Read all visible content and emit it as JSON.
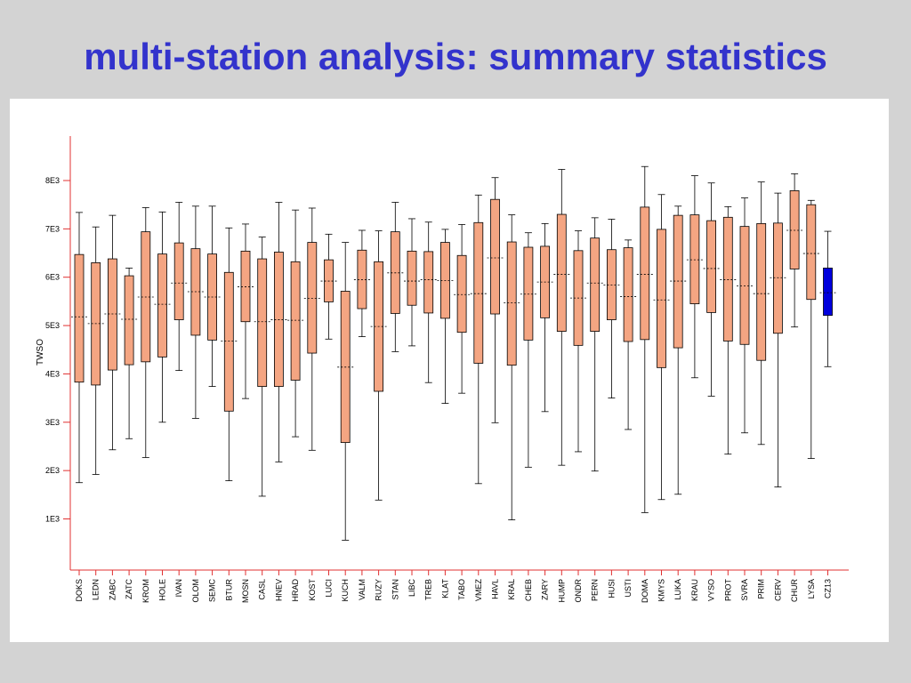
{
  "slide": {
    "title": "multi-station analysis: summary statistics"
  },
  "colors": {
    "title": "#3333cc",
    "axis": "#e03030",
    "box_fill": "#f4a582",
    "highlight_fill": "#0000dd",
    "background": "#d3d3d3"
  },
  "chart_data": {
    "type": "boxplot",
    "title": "",
    "ylabel": "TWSO",
    "xlabel": "",
    "ylim": [
      0,
      8800
    ],
    "ytick_values": [
      1000,
      2000,
      3000,
      4000,
      5000,
      6000,
      7000,
      8000
    ],
    "ytick_labels": [
      "1E3",
      "2E3",
      "3E3",
      "4E3",
      "5E3",
      "6E3",
      "7E3",
      "8E3"
    ],
    "grid": false,
    "highlighted_category": "CZ13",
    "categories": [
      "DOKS",
      "LEDN",
      "ZABC",
      "ZATC",
      "KROM",
      "HOLE",
      "IVAN",
      "OLOM",
      "SEMC",
      "BTUR",
      "MOSN",
      "CASL",
      "HNEV",
      "HRAD",
      "KOST",
      "LUCI",
      "KUCH",
      "VALM",
      "RUZY",
      "STAN",
      "LIBC",
      "TREB",
      "KLAT",
      "TABO",
      "VMEZ",
      "HAVL",
      "KRAL",
      "CHEB",
      "ZARY",
      "HUMP",
      "ONDR",
      "PERN",
      "HUSI",
      "USTI",
      "DOMA",
      "KMYS",
      "LUKA",
      "KRAU",
      "VYSO",
      "PROT",
      "SVRA",
      "PRIM",
      "CERV",
      "CHUR",
      "LYSA",
      "CZ13"
    ],
    "boxes": [
      {
        "min": 1750,
        "q1": 3830,
        "median": 5180,
        "q3": 6470,
        "max": 7340
      },
      {
        "min": 1920,
        "q1": 3770,
        "median": 5040,
        "q3": 6300,
        "max": 7040
      },
      {
        "min": 2430,
        "q1": 4080,
        "median": 5240,
        "q3": 6380,
        "max": 7280
      },
      {
        "min": 2660,
        "q1": 4190,
        "median": 5130,
        "q3": 6030,
        "max": 6190
      },
      {
        "min": 2270,
        "q1": 4250,
        "median": 5590,
        "q3": 6940,
        "max": 7440
      },
      {
        "min": 3000,
        "q1": 4350,
        "median": 5440,
        "q3": 6480,
        "max": 7350
      },
      {
        "min": 4070,
        "q1": 5120,
        "median": 5880,
        "q3": 6710,
        "max": 7550
      },
      {
        "min": 3080,
        "q1": 4800,
        "median": 5700,
        "q3": 6590,
        "max": 7470
      },
      {
        "min": 3740,
        "q1": 4700,
        "median": 5590,
        "q3": 6480,
        "max": 7470
      },
      {
        "min": 1790,
        "q1": 3230,
        "median": 4680,
        "q3": 6100,
        "max": 7020
      },
      {
        "min": 3490,
        "q1": 5080,
        "median": 5800,
        "q3": 6540,
        "max": 7100
      },
      {
        "min": 1470,
        "q1": 3740,
        "median": 5080,
        "q3": 6380,
        "max": 6830
      },
      {
        "min": 2180,
        "q1": 3740,
        "median": 5120,
        "q3": 6520,
        "max": 7550
      },
      {
        "min": 2700,
        "q1": 3870,
        "median": 5110,
        "q3": 6320,
        "max": 7390
      },
      {
        "min": 2420,
        "q1": 4430,
        "median": 5560,
        "q3": 6720,
        "max": 7430
      },
      {
        "min": 4720,
        "q1": 5490,
        "median": 5920,
        "q3": 6360,
        "max": 6890
      },
      {
        "min": 560,
        "q1": 2580,
        "median": 4140,
        "q3": 5710,
        "max": 6720
      },
      {
        "min": 4770,
        "q1": 5350,
        "median": 5950,
        "q3": 6560,
        "max": 6970
      },
      {
        "min": 1390,
        "q1": 3640,
        "median": 4980,
        "q3": 6320,
        "max": 6960
      },
      {
        "min": 4460,
        "q1": 5250,
        "median": 6090,
        "q3": 6940,
        "max": 7550
      },
      {
        "min": 4580,
        "q1": 5420,
        "median": 5920,
        "q3": 6540,
        "max": 7210
      },
      {
        "min": 3820,
        "q1": 5260,
        "median": 5950,
        "q3": 6530,
        "max": 7140
      },
      {
        "min": 3390,
        "q1": 5150,
        "median": 5930,
        "q3": 6720,
        "max": 6990
      },
      {
        "min": 3600,
        "q1": 4860,
        "median": 5640,
        "q3": 6450,
        "max": 7090
      },
      {
        "min": 1730,
        "q1": 4220,
        "median": 5660,
        "q3": 7130,
        "max": 7700
      },
      {
        "min": 2990,
        "q1": 5240,
        "median": 6400,
        "q3": 7610,
        "max": 8060
      },
      {
        "min": 980,
        "q1": 4180,
        "median": 5470,
        "q3": 6730,
        "max": 7290
      },
      {
        "min": 2070,
        "q1": 4700,
        "median": 5650,
        "q3": 6620,
        "max": 6920
      },
      {
        "min": 3220,
        "q1": 5160,
        "median": 5900,
        "q3": 6640,
        "max": 7110
      },
      {
        "min": 2110,
        "q1": 4880,
        "median": 6060,
        "q3": 7300,
        "max": 8230
      },
      {
        "min": 2390,
        "q1": 4590,
        "median": 5570,
        "q3": 6550,
        "max": 6960
      },
      {
        "min": 1990,
        "q1": 4880,
        "median": 5880,
        "q3": 6810,
        "max": 7230
      },
      {
        "min": 3500,
        "q1": 5120,
        "median": 5840,
        "q3": 6570,
        "max": 7200
      },
      {
        "min": 2850,
        "q1": 4670,
        "median": 5600,
        "q3": 6610,
        "max": 6770
      },
      {
        "min": 1130,
        "q1": 4710,
        "median": 6060,
        "q3": 7450,
        "max": 8290
      },
      {
        "min": 1400,
        "q1": 4130,
        "median": 5530,
        "q3": 6990,
        "max": 7710
      },
      {
        "min": 1510,
        "q1": 4540,
        "median": 5920,
        "q3": 7280,
        "max": 7470
      },
      {
        "min": 3920,
        "q1": 5450,
        "median": 6360,
        "q3": 7290,
        "max": 8100
      },
      {
        "min": 3540,
        "q1": 5270,
        "median": 6180,
        "q3": 7170,
        "max": 7950
      },
      {
        "min": 2340,
        "q1": 4680,
        "median": 5950,
        "q3": 7240,
        "max": 7460
      },
      {
        "min": 2780,
        "q1": 4610,
        "median": 5820,
        "q3": 7050,
        "max": 7640
      },
      {
        "min": 2540,
        "q1": 4280,
        "median": 5660,
        "q3": 7110,
        "max": 7970
      },
      {
        "min": 1660,
        "q1": 4840,
        "median": 5990,
        "q3": 7120,
        "max": 7740
      },
      {
        "min": 4970,
        "q1": 6170,
        "median": 6970,
        "q3": 7790,
        "max": 8140
      },
      {
        "min": 2250,
        "q1": 5540,
        "median": 6490,
        "q3": 7500,
        "max": 7590
      },
      {
        "min": 4150,
        "q1": 5210,
        "median": 5680,
        "q3": 6190,
        "max": 6950
      }
    ]
  }
}
